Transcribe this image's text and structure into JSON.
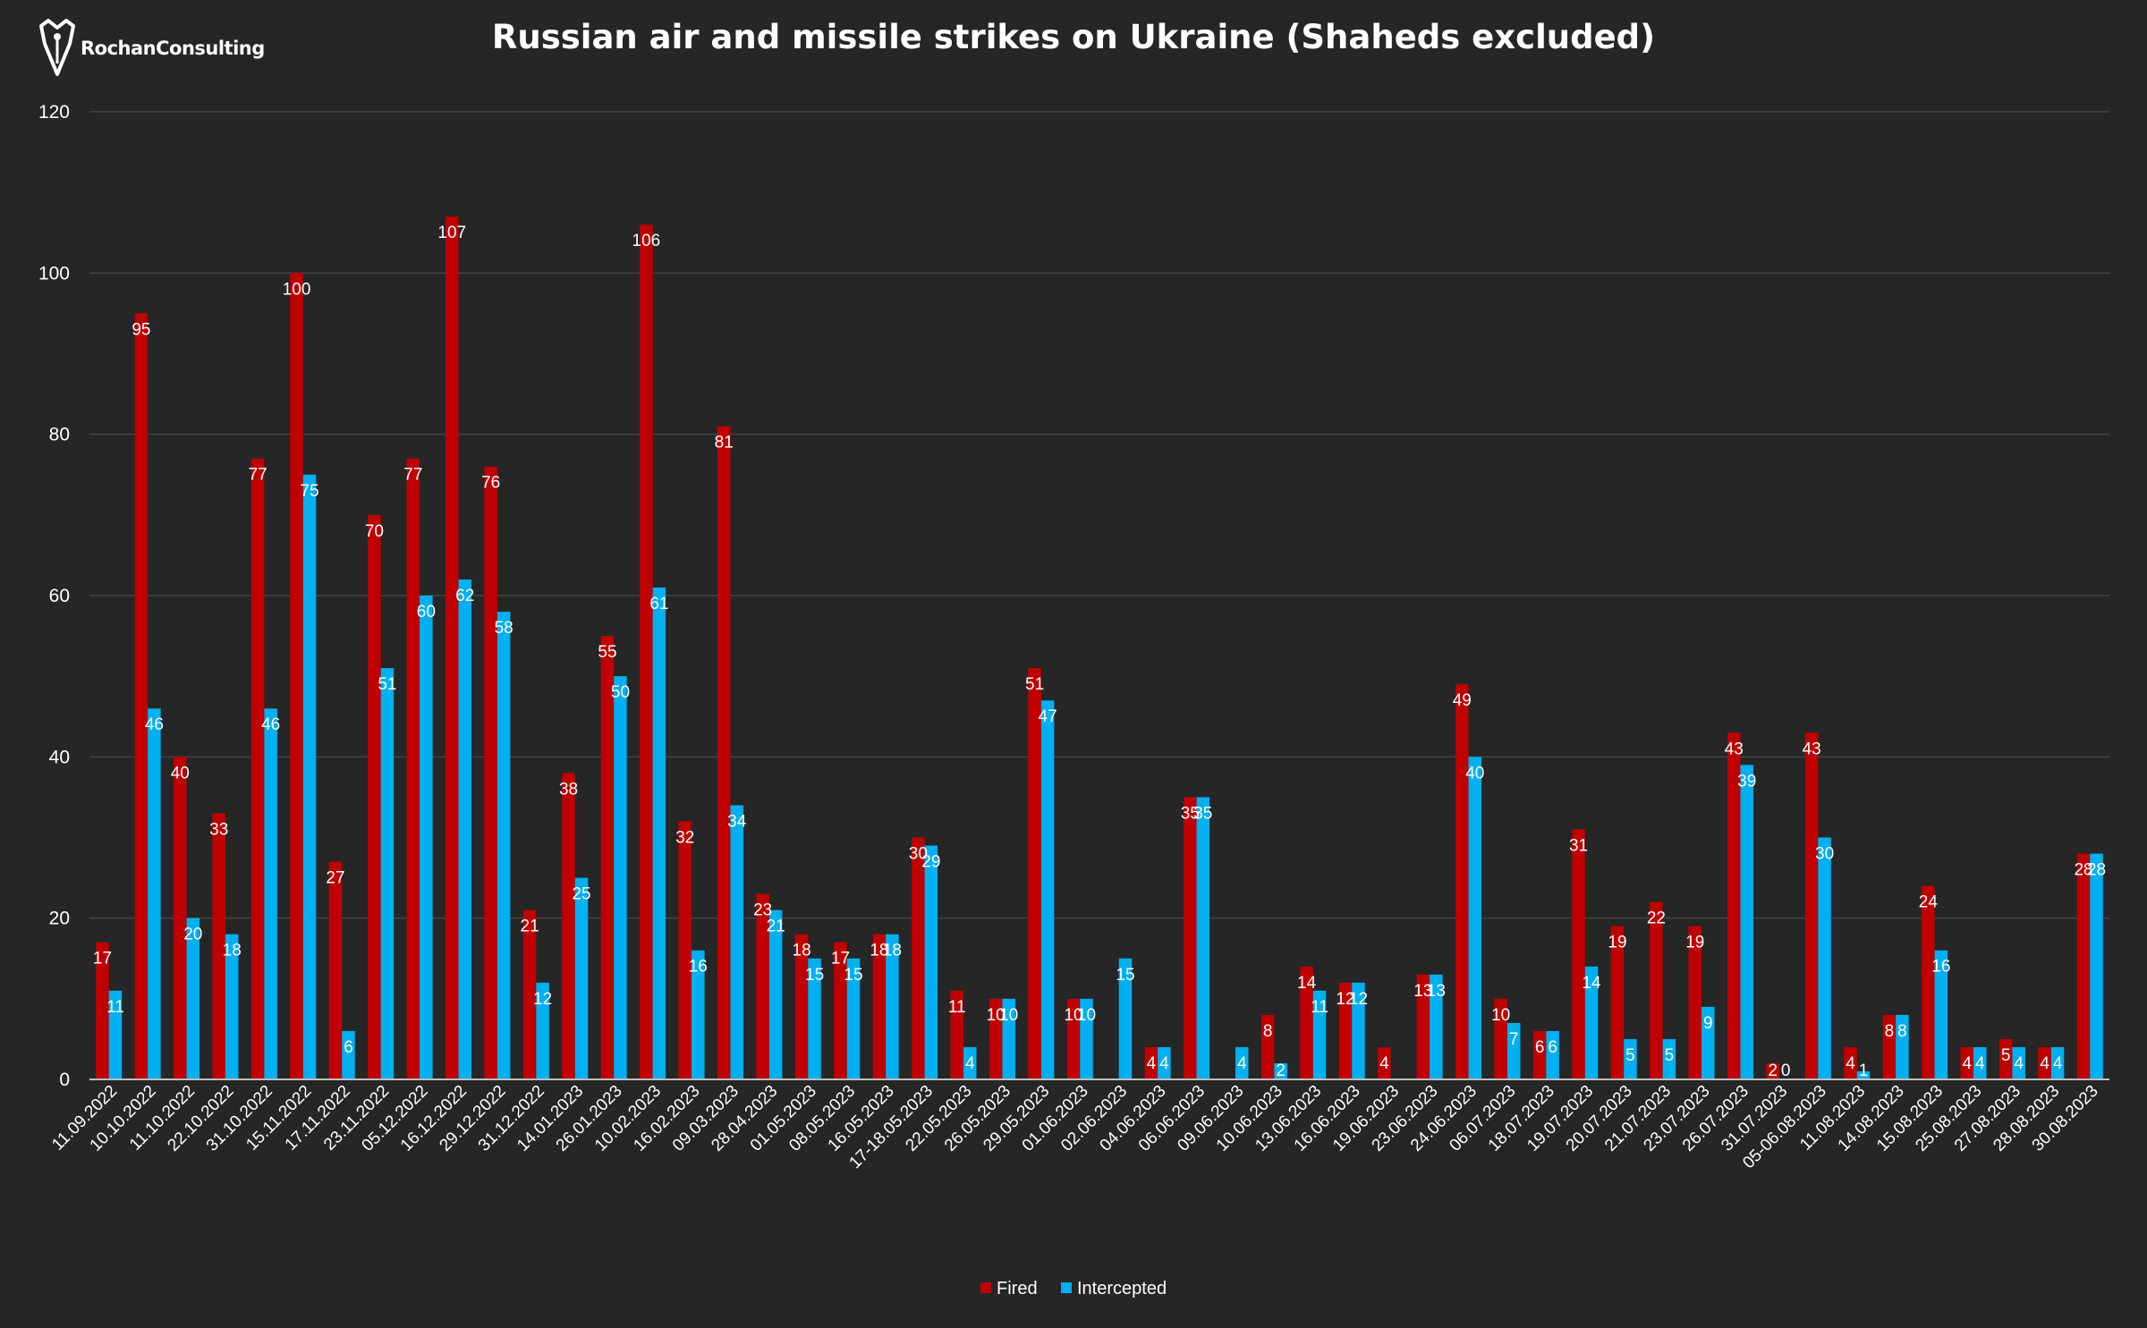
{
  "logo": {
    "text": "RochanConsulting"
  },
  "chart_data": {
    "type": "bar",
    "title": "Russian air and missile strikes on Ukraine (Shaheds excluded)",
    "xlabel": "",
    "ylabel": "",
    "ylim": [
      0,
      120
    ],
    "yticks": [
      0,
      20,
      40,
      60,
      80,
      100,
      120
    ],
    "grid": true,
    "legend_position": "bottom-center",
    "categories": [
      "11.09.2022",
      "10.10.2022",
      "11.10.2022",
      "22.10.2022",
      "31.10.2022",
      "15.11.2022",
      "17.11.2022",
      "23.11.2022",
      "05.12.2022",
      "16.12.2022",
      "29.12.2022",
      "31.12.2022",
      "14.01.2023",
      "26.01.2023",
      "10.02.2023",
      "16.02.2023",
      "09.03.2023",
      "28.04.2023",
      "01.05.2023",
      "08.05.2023",
      "16.05.2023",
      "17-18.05.2023",
      "22.05.2023",
      "26.05.2023",
      "29.05.2023",
      "01.06.2023",
      "02.06.2023",
      "04.06.2023",
      "06.06.2023",
      "09.06.2023",
      "10.06.2023",
      "13.06.2023",
      "16.06.2023",
      "19.06.2023",
      "23.06.2023",
      "24.06.2023",
      "06.07.2023",
      "18.07.2023",
      "19.07.2023",
      "20.07.2023",
      "21.07.2023",
      "23.07.2023",
      "26.07.2023",
      "31.07.2023",
      "05-06.08.2023",
      "11.08.2023",
      "14.08.2023",
      "15.08.2023",
      "25.08.2023",
      "27.08.2023",
      "28.08.2023",
      "30.08.2023"
    ],
    "series": [
      {
        "name": "Fired",
        "color": "#c00000",
        "values": [
          17,
          95,
          40,
          33,
          77,
          100,
          27,
          70,
          77,
          107,
          76,
          21,
          38,
          55,
          106,
          32,
          81,
          23,
          18,
          17,
          18,
          30,
          11,
          10,
          51,
          10,
          0,
          4,
          35,
          0,
          8,
          14,
          12,
          4,
          13,
          49,
          10,
          6,
          31,
          19,
          22,
          19,
          43,
          2,
          43,
          4,
          8,
          24,
          4,
          5,
          4,
          28
        ],
        "labels": [
          "17",
          "95",
          "40",
          "33",
          "77",
          "100",
          "27",
          "70",
          "77",
          "107",
          "76",
          "21",
          "38",
          "55",
          "106",
          "32",
          "81",
          "23",
          "18",
          "17",
          "18",
          "30",
          "11",
          "10",
          "51",
          "10",
          "",
          "4",
          "35",
          "",
          "8",
          "14",
          "12",
          "4",
          "13",
          "49",
          "10",
          "6",
          "31",
          "19",
          "22",
          "19",
          "43",
          "2",
          "43",
          "4",
          "8",
          "24",
          "4",
          "5",
          "4",
          "28"
        ]
      },
      {
        "name": "Intercepted",
        "color": "#00b0f0",
        "values": [
          11,
          46,
          20,
          18,
          46,
          75,
          6,
          51,
          60,
          62,
          58,
          12,
          25,
          50,
          61,
          16,
          34,
          21,
          15,
          15,
          18,
          29,
          4,
          10,
          47,
          10,
          15,
          4,
          35,
          4,
          2,
          11,
          12,
          0,
          13,
          40,
          7,
          6,
          14,
          5,
          5,
          9,
          39,
          0,
          30,
          1,
          8,
          16,
          4,
          4,
          4,
          28
        ],
        "labels": [
          "11",
          "46",
          "20",
          "18",
          "46",
          "75",
          "6",
          "51",
          "60",
          "62",
          "58",
          "12",
          "25",
          "50",
          "61",
          "16",
          "34",
          "21",
          "15",
          "15",
          "18",
          "29",
          "4",
          "10",
          "47",
          "10",
          "15",
          "4",
          "35",
          "4",
          "2",
          "11",
          "12",
          "",
          "13",
          "40",
          "7",
          "6",
          "14",
          "5",
          "5",
          "9",
          "39",
          "0",
          "30",
          "1",
          "8",
          "16",
          "4",
          "4",
          "4",
          "28"
        ]
      }
    ]
  }
}
